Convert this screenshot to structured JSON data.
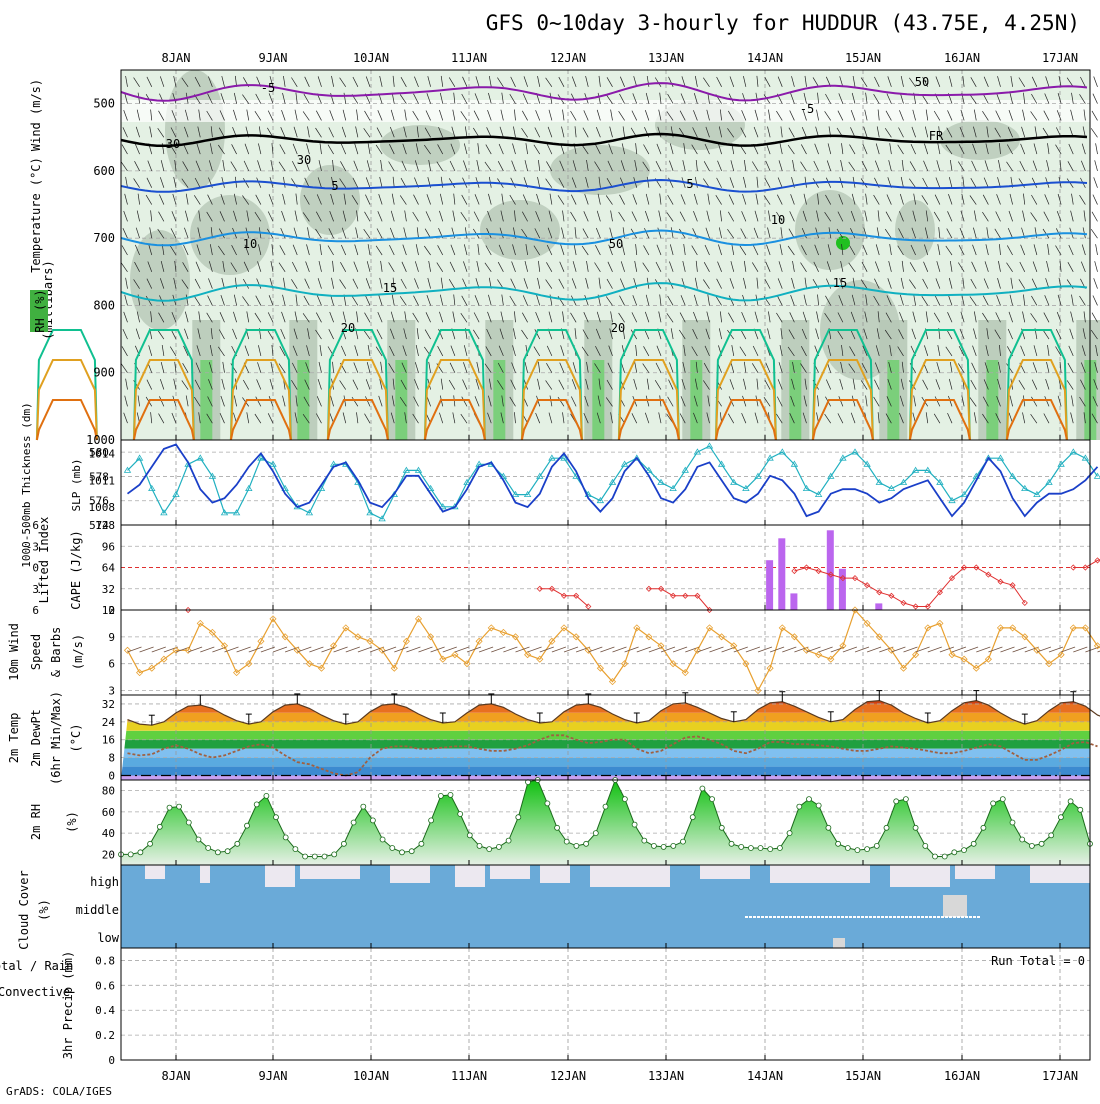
{
  "title": "GFS 0~10day 3-hourly for HUDDUR (43.75E, 4.25N)",
  "footer": "GrADS: COLA/IGES",
  "run_total": "Run Total = 0",
  "days": [
    "8JAN",
    "9JAN",
    "10JAN",
    "11JAN",
    "12JAN",
    "13JAN",
    "14JAN",
    "15JAN",
    "16JAN",
    "17JAN"
  ],
  "colors": {
    "temp_neg": "#8a1aaa",
    "freezing": "#000000",
    "temp_5": "#1a4fd0",
    "temp_10": "#1a90e0",
    "temp_15": "#10b0c0",
    "temp_20": "#10c090",
    "temp_25": "#e0a020",
    "temp_30": "#e07010",
    "rh_light": "#e4f1e4",
    "rh_mid": "#b6c8b6",
    "rh_green": "#60d060",
    "slp": "#1a3fc8",
    "thickness": "#20b0c0",
    "lifted_index": "#e03030",
    "cape": "#bb66ee",
    "wind_speed": "#e8a030",
    "barbs": "#705040",
    "rh2m": "#20a020",
    "cloud": "#6aaad8",
    "cloud_clear": "#ece8f0",
    "dewpoint": "#a06040"
  },
  "panels": {
    "profile": {
      "labels": [
        "RH (%)",
        "Temperature (°C)",
        "Wind (m/s)",
        "(millibars)"
      ],
      "ticks": [
        "500",
        "600",
        "700",
        "800",
        "900",
        "1000"
      ],
      "contour_labels": [
        "-5",
        "-5",
        "FR",
        "5",
        "5",
        "10",
        "10",
        "15",
        "15",
        "20",
        "20",
        "30",
        "30",
        "50",
        "50"
      ]
    },
    "slp_thickness": {
      "labels": [
        "1000-500mb Thickness (dm)",
        "SLP (mb)"
      ],
      "left_ticks": [
        "580",
        "578",
        "576",
        "574"
      ],
      "right_ticks": [
        "1014",
        "1011",
        "1008"
      ]
    },
    "stability": {
      "labels": [
        "Lifted Index",
        "CAPE (J/kg)"
      ],
      "left_ticks": [
        "-6",
        "-3",
        "0",
        "3",
        "6"
      ],
      "right_ticks": [
        "128",
        "96",
        "64",
        "32",
        "0"
      ]
    },
    "wind10m": {
      "labels": [
        "10m Wind",
        "Speed",
        "& Barbs",
        "(m/s)"
      ],
      "ticks": [
        "12",
        "9",
        "6",
        "3"
      ]
    },
    "temp2m": {
      "labels": [
        "2m Temp",
        "2m DewPt",
        "(6hr Min/Max)",
        "(°C)"
      ],
      "ticks": [
        "32",
        "24",
        "16",
        "8",
        "0"
      ]
    },
    "rh2m": {
      "labels": [
        "2m RH",
        "(%)"
      ],
      "ticks": [
        "80",
        "60",
        "40",
        "20"
      ]
    },
    "cloud": {
      "labels": [
        "Cloud Cover",
        "(%)"
      ],
      "levels": [
        "high",
        "middle",
        "low"
      ]
    },
    "precip": {
      "labels": [
        "Total / Rain",
        "Convective",
        "3hr Precip (mm)"
      ],
      "ticks": [
        "0.8",
        "0.6",
        "0.4",
        "0.2",
        "0"
      ]
    }
  },
  "chart_data": [
    {
      "type": "line",
      "title": "1000-500mb Thickness (dm)",
      "ylim": [
        574,
        581
      ],
      "series": [
        {
          "name": "1000-500mb Thickness (dm)",
          "values": [
            578.5,
            579.5,
            577.0,
            575.0,
            576.5,
            579.0,
            579.5,
            578.0,
            575.0,
            575.0,
            577.0,
            579.5,
            579.0,
            577.0,
            575.5,
            575.0,
            577.0,
            579.0,
            579.0,
            577.5,
            575.0,
            574.5,
            576.5,
            578.5,
            578.5,
            577.0,
            575.5,
            575.5,
            577.5,
            579.0,
            579.0,
            578.0,
            576.5,
            576.5,
            578.0,
            579.5,
            579.5,
            578.0,
            576.5,
            576.0,
            577.5,
            579.0,
            579.5,
            578.5,
            577.5,
            577.0,
            578.5,
            580.0,
            580.5,
            579.0,
            577.5,
            577.0,
            578.0,
            579.5,
            580.0,
            579.0,
            577.0,
            576.5,
            578.0,
            579.5,
            580.0,
            579.0,
            577.5,
            577.0,
            577.5,
            578.5,
            578.5,
            577.5,
            576.0,
            576.5,
            578.0,
            579.5,
            579.5,
            578.0,
            577.0,
            576.5,
            577.5,
            579.0,
            580.0,
            579.5,
            578.0
          ]
        }
      ]
    },
    {
      "type": "line",
      "title": "SLP (mb)",
      "ylim": [
        1006,
        1015.5
      ],
      "series": [
        {
          "name": "SLP (mb)",
          "values": [
            1009.5,
            1010.5,
            1012.5,
            1014.5,
            1015.0,
            1013.0,
            1010.0,
            1008.5,
            1009.0,
            1010.5,
            1012.5,
            1014.0,
            1012.0,
            1009.5,
            1008.0,
            1008.5,
            1010.5,
            1012.5,
            1013.0,
            1011.0,
            1008.5,
            1008.0,
            1009.5,
            1011.5,
            1011.5,
            1009.5,
            1007.5,
            1008.0,
            1010.0,
            1012.5,
            1013.0,
            1011.0,
            1008.5,
            1008.0,
            1009.5,
            1012.5,
            1014.0,
            1012.0,
            1009.0,
            1007.5,
            1009.0,
            1012.0,
            1013.5,
            1011.5,
            1009.0,
            1008.5,
            1010.0,
            1012.5,
            1013.0,
            1011.0,
            1009.0,
            1008.5,
            1009.5,
            1011.5,
            1011.0,
            1009.5,
            1007.0,
            1007.5,
            1009.5,
            1010.0,
            1010.0,
            1009.5,
            1008.5,
            1009.0,
            1010.0,
            1010.5,
            1011.0,
            1009.0,
            1007.0,
            1008.5,
            1011.0,
            1013.5,
            1012.0,
            1009.0,
            1007.0,
            1008.5,
            1009.5,
            1009.5,
            1010.0,
            1011.0,
            1012.5
          ]
        }
      ]
    },
    {
      "type": "line",
      "title": "Lifted Index",
      "ylim": [
        -6,
        6
      ],
      "series": [
        {
          "name": "Lifted Index",
          "values": [
            null,
            null,
            null,
            null,
            null,
            6.0,
            null,
            null,
            null,
            null,
            null,
            null,
            null,
            null,
            null,
            null,
            null,
            null,
            null,
            null,
            null,
            null,
            null,
            null,
            null,
            null,
            null,
            null,
            null,
            null,
            null,
            null,
            null,
            null,
            3.0,
            3.0,
            4.0,
            4.0,
            5.5,
            null,
            null,
            null,
            null,
            3.0,
            3.0,
            4.0,
            4.0,
            4.0,
            6.0,
            null,
            null,
            null,
            null,
            null,
            null,
            0.5,
            0.0,
            0.5,
            1.0,
            1.5,
            1.5,
            2.5,
            3.5,
            4.0,
            5.0,
            5.5,
            5.5,
            3.5,
            1.5,
            0.0,
            0.0,
            1.0,
            2.0,
            2.5,
            5.0,
            null,
            null,
            null,
            0.0,
            0.0,
            -1.0,
            -1.5,
            0.0,
            1.5,
            3.0,
            4.0,
            null,
            null,
            0.5,
            0.0,
            0.0,
            0.0,
            0.0,
            0.5,
            0.5,
            1.5,
            2.5,
            3.5,
            3.0,
            2.0,
            2.5,
            2.0,
            2.5,
            3.5,
            5.0,
            null,
            null,
            null,
            null,
            4.0,
            4.0
          ]
        }
      ]
    },
    {
      "type": "bar",
      "title": "CAPE (J/kg)",
      "ylim": [
        0,
        128
      ],
      "x": [
        53,
        54,
        55,
        58,
        59,
        62
      ],
      "values": [
        75,
        108,
        25,
        120,
        62,
        10
      ]
    },
    {
      "type": "line",
      "title": "10m Wind Speed (m/s)",
      "ylim": [
        2.5,
        12
      ],
      "series": [
        {
          "name": "10m Wind Speed",
          "values": [
            7.5,
            5.0,
            5.5,
            6.5,
            7.5,
            7.5,
            10.5,
            9.5,
            8.0,
            5.0,
            6.0,
            8.5,
            11.0,
            9.0,
            7.5,
            6.0,
            5.5,
            8.0,
            10.0,
            9.0,
            8.5,
            7.5,
            5.5,
            8.5,
            11.0,
            9.0,
            6.5,
            7.0,
            6.0,
            8.5,
            10.0,
            9.5,
            9.0,
            7.0,
            6.5,
            8.5,
            10.0,
            9.0,
            7.5,
            5.5,
            4.0,
            6.0,
            10.0,
            9.0,
            8.0,
            6.0,
            5.0,
            7.5,
            10.0,
            9.0,
            8.0,
            6.0,
            3.0,
            5.5,
            10.0,
            9.0,
            7.5,
            7.0,
            6.5,
            8.0,
            12.0,
            10.5,
            9.0,
            7.5,
            5.5,
            7.0,
            10.0,
            10.5,
            7.0,
            6.5,
            5.5,
            6.5,
            10.0,
            10.0,
            9.0,
            7.5,
            6.0,
            7.0,
            10.0,
            10.0,
            8.0,
            7.0,
            6.5,
            8.0
          ]
        }
      ]
    },
    {
      "type": "area",
      "title": "2m Temp / 2m DewPt (°C)",
      "ylim": [
        -2,
        36
      ],
      "series": [
        {
          "name": "2m Temp",
          "values": [
            25.0,
            23.0,
            22.5,
            24.0,
            28.0,
            31.0,
            31.5,
            30.0,
            27.0,
            24.5,
            23.0,
            24.0,
            28.5,
            31.5,
            32.0,
            30.0,
            27.0,
            24.5,
            23.0,
            24.0,
            28.5,
            31.5,
            32.0,
            30.5,
            27.5,
            25.0,
            23.5,
            24.0,
            28.0,
            31.5,
            32.0,
            30.5,
            27.5,
            25.0,
            23.5,
            24.0,
            28.5,
            31.5,
            32.0,
            30.5,
            27.5,
            25.0,
            23.5,
            24.5,
            29.0,
            32.0,
            32.5,
            30.5,
            28.0,
            25.5,
            24.0,
            25.0,
            29.5,
            32.5,
            33.0,
            31.0,
            28.5,
            26.0,
            24.0,
            25.0,
            29.5,
            33.0,
            33.5,
            31.5,
            28.0,
            25.5,
            23.5,
            24.5,
            29.0,
            32.5,
            33.5,
            31.5,
            28.0,
            25.0,
            23.0,
            24.5,
            29.0,
            32.5,
            33.0,
            31.0,
            27.0,
            25.0
          ]
        },
        {
          "name": "2m DewPt",
          "values": [
            10.0,
            9.0,
            9.5,
            12.0,
            13.5,
            12.0,
            9.5,
            8.0,
            9.0,
            11.0,
            13.0,
            14.0,
            12.5,
            9.0,
            6.0,
            5.0,
            3.0,
            1.0,
            0.0,
            1.5,
            8.0,
            12.0,
            13.0,
            13.0,
            12.0,
            12.0,
            12.5,
            13.0,
            13.0,
            12.0,
            11.0,
            11.0,
            12.0,
            13.5,
            16.0,
            18.0,
            18.0,
            16.0,
            14.5,
            15.0,
            16.0,
            16.0,
            12.0,
            10.0,
            11.0,
            14.0,
            17.0,
            17.5,
            16.0,
            14.0,
            11.0,
            10.0,
            12.0,
            15.0,
            15.0,
            14.0,
            14.0,
            13.5,
            13.0,
            12.0,
            11.0,
            11.0,
            12.0,
            13.0,
            12.5,
            12.0,
            11.0,
            10.0,
            10.0,
            11.0,
            12.5,
            14.0,
            13.0,
            10.0,
            7.0,
            7.0,
            9.0,
            11.5,
            14.5,
            15.0,
            13.0
          ]
        }
      ]
    },
    {
      "type": "area",
      "title": "2m RH (%)",
      "ylim": [
        10,
        90
      ],
      "series": [
        {
          "name": "2m RH",
          "values": [
            20,
            20,
            22,
            30,
            46,
            64,
            65,
            50,
            34,
            26,
            22,
            23,
            30,
            47,
            67,
            75,
            55,
            36,
            25,
            18,
            18,
            18,
            20,
            30,
            50,
            65,
            52,
            34,
            26,
            22,
            23,
            30,
            52,
            75,
            76,
            58,
            38,
            28,
            25,
            27,
            33,
            55,
            88,
            90,
            68,
            45,
            32,
            28,
            30,
            40,
            65,
            90,
            72,
            48,
            33,
            28,
            27,
            28,
            32,
            55,
            82,
            72,
            45,
            30,
            27,
            26,
            26,
            25,
            26,
            40,
            65,
            72,
            66,
            45,
            30,
            26,
            24,
            25,
            28,
            45,
            70,
            72,
            45,
            28,
            18,
            18,
            22,
            24,
            30,
            45,
            68,
            72,
            50,
            34,
            28,
            30,
            38,
            55,
            70,
            62,
            30
          ]
        }
      ]
    },
    {
      "type": "bar",
      "title": "3hr Precip (mm)",
      "ylim": [
        0,
        0.9
      ],
      "values": []
    }
  ]
}
